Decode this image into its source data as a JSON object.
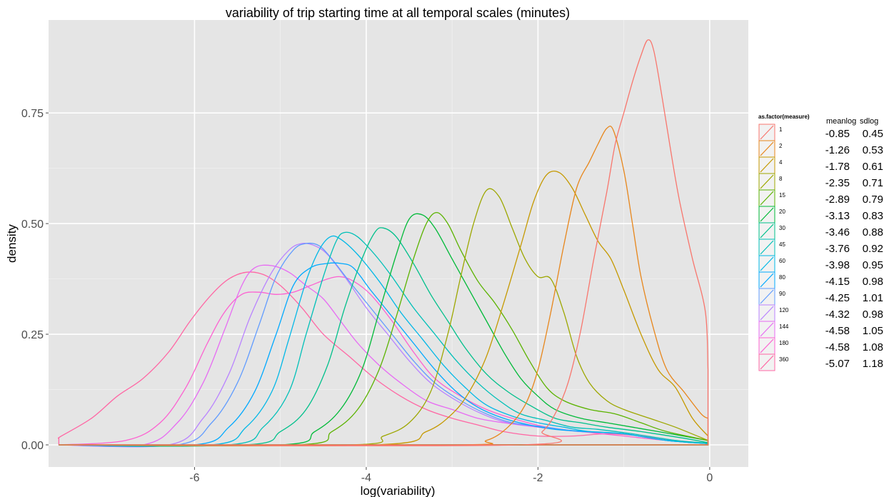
{
  "chart_data": {
    "type": "line",
    "title": "variability of trip starting time at all temporal scales (minutes)",
    "xlabel": "log(variability)",
    "ylabel": "density",
    "xlim": [
      -7.7,
      0.45
    ],
    "ylim": [
      -0.05,
      0.96
    ],
    "x_ticks": [
      -6,
      -4,
      -2,
      0
    ],
    "x_tick_labels": [
      "-6",
      "-4",
      "-2",
      "0"
    ],
    "y_ticks": [
      0,
      0.25,
      0.5,
      0.75
    ],
    "y_tick_labels": [
      "0.00",
      "0.25",
      "0.50",
      "0.75"
    ],
    "grid": true,
    "legend_position": "right",
    "legend_title": "as.factor(measure)",
    "stats_headers": [
      "meanlog",
      "sdlog"
    ],
    "series": [
      {
        "name": "1",
        "color": "#F8766D",
        "meanlog": "-0.85",
        "sdlog": "0.45",
        "x": [
          -7.58,
          -2.2,
          -1.95,
          -1.8,
          -1.65,
          -1.5,
          -1.35,
          -1.2,
          -1.1,
          -1.0,
          -0.9,
          -0.8,
          -0.72,
          -0.65,
          -0.55,
          -0.45,
          -0.35,
          -0.2,
          -0.05,
          -0.02
        ],
        "y": [
          0,
          0,
          0.03,
          0.07,
          0.14,
          0.26,
          0.42,
          0.57,
          0.68,
          0.75,
          0.82,
          0.88,
          0.915,
          0.89,
          0.78,
          0.66,
          0.55,
          0.42,
          0.3,
          0.17
        ]
      },
      {
        "name": "2",
        "color": "#E7861B",
        "meanlog": "-1.26",
        "sdlog": "0.53",
        "x": [
          -7.58,
          -3.0,
          -2.6,
          -2.35,
          -2.15,
          -2.0,
          -1.85,
          -1.7,
          -1.55,
          -1.4,
          -1.3,
          -1.2,
          -1.12,
          -1.0,
          -0.9,
          -0.8,
          -0.65,
          -0.5,
          -0.3,
          -0.1,
          -0.02
        ],
        "y": [
          0,
          0,
          0.01,
          0.04,
          0.09,
          0.17,
          0.3,
          0.45,
          0.58,
          0.64,
          0.68,
          0.715,
          0.71,
          0.62,
          0.5,
          0.38,
          0.26,
          0.17,
          0.12,
          0.07,
          0.06
        ]
      },
      {
        "name": "4",
        "color": "#C59900",
        "meanlog": "-1.78",
        "sdlog": "0.61",
        "x": [
          -7.58,
          -3.9,
          -3.3,
          -3.0,
          -2.8,
          -2.6,
          -2.4,
          -2.2,
          -2.05,
          -1.9,
          -1.75,
          -1.6,
          -1.45,
          -1.3,
          -1.15,
          -1.0,
          -0.8,
          -0.6,
          -0.4,
          -0.2,
          -0.02
        ],
        "y": [
          0,
          0,
          0.03,
          0.07,
          0.12,
          0.2,
          0.32,
          0.45,
          0.55,
          0.61,
          0.615,
          0.58,
          0.52,
          0.46,
          0.42,
          0.35,
          0.25,
          0.17,
          0.13,
          0.06,
          0.02
        ]
      },
      {
        "name": "8",
        "color": "#9DA700",
        "meanlog": "-2.35",
        "sdlog": "0.71",
        "x": [
          -7.58,
          -4.2,
          -3.8,
          -3.5,
          -3.25,
          -3.05,
          -2.9,
          -2.75,
          -2.6,
          -2.45,
          -2.3,
          -2.15,
          -2.0,
          -1.85,
          -1.7,
          -1.55,
          -1.4,
          -1.2,
          -1.0,
          -0.7,
          -0.4,
          -0.02
        ],
        "y": [
          0,
          0,
          0.02,
          0.05,
          0.12,
          0.25,
          0.38,
          0.5,
          0.575,
          0.56,
          0.49,
          0.42,
          0.38,
          0.375,
          0.3,
          0.2,
          0.14,
          0.1,
          0.08,
          0.06,
          0.04,
          0.01
        ]
      },
      {
        "name": "15",
        "color": "#5BB300",
        "meanlog": "-2.89",
        "sdlog": "0.79",
        "x": [
          -7.58,
          -4.8,
          -4.4,
          -4.1,
          -3.85,
          -3.65,
          -3.45,
          -3.3,
          -3.18,
          -3.05,
          -2.9,
          -2.7,
          -2.5,
          -2.3,
          -2.1,
          -1.9,
          -1.7,
          -1.4,
          -1.1,
          -0.8,
          -0.5,
          -0.02
        ],
        "y": [
          0,
          0,
          0.03,
          0.08,
          0.17,
          0.29,
          0.42,
          0.5,
          0.525,
          0.5,
          0.44,
          0.37,
          0.32,
          0.26,
          0.19,
          0.13,
          0.1,
          0.08,
          0.07,
          0.05,
          0.03,
          0.01
        ]
      },
      {
        "name": "20",
        "color": "#00BA38",
        "meanlog": "-3.13",
        "sdlog": "0.83",
        "x": [
          -7.58,
          -5.0,
          -4.6,
          -4.3,
          -4.05,
          -3.85,
          -3.65,
          -3.5,
          -3.35,
          -3.2,
          -3.0,
          -2.8,
          -2.6,
          -2.4,
          -2.2,
          -2.0,
          -1.8,
          -1.5,
          -1.2,
          -0.9,
          -0.6,
          -0.02
        ],
        "y": [
          0,
          0,
          0.03,
          0.08,
          0.17,
          0.3,
          0.43,
          0.51,
          0.52,
          0.49,
          0.42,
          0.35,
          0.28,
          0.21,
          0.15,
          0.11,
          0.08,
          0.06,
          0.05,
          0.04,
          0.03,
          0.01
        ]
      },
      {
        "name": "30",
        "color": "#00C08B",
        "meanlog": "-3.46",
        "sdlog": "0.88",
        "x": [
          -7.58,
          -5.4,
          -5.0,
          -4.7,
          -4.45,
          -4.25,
          -4.05,
          -3.9,
          -3.8,
          -3.65,
          -3.45,
          -3.25,
          -3.05,
          -2.85,
          -2.6,
          -2.35,
          -2.1,
          -1.8,
          -1.5,
          -1.2,
          -0.8,
          -0.3,
          -0.02
        ],
        "y": [
          0,
          0,
          0.03,
          0.08,
          0.18,
          0.31,
          0.42,
          0.48,
          0.49,
          0.47,
          0.41,
          0.34,
          0.28,
          0.22,
          0.16,
          0.12,
          0.09,
          0.06,
          0.05,
          0.04,
          0.03,
          0.015,
          0.005
        ]
      },
      {
        "name": "45",
        "color": "#00C0B8",
        "meanlog": "-3.76",
        "sdlog": "0.92",
        "x": [
          -7.58,
          -5.6,
          -5.2,
          -4.9,
          -4.7,
          -4.5,
          -4.35,
          -4.25,
          -4.1,
          -3.9,
          -3.7,
          -3.45,
          -3.2,
          -2.95,
          -2.7,
          -2.45,
          -2.2,
          -1.9,
          -1.6,
          -1.3,
          -0.9,
          -0.4,
          -0.02
        ],
        "y": [
          0,
          0,
          0.04,
          0.12,
          0.25,
          0.38,
          0.46,
          0.48,
          0.47,
          0.43,
          0.38,
          0.31,
          0.25,
          0.19,
          0.14,
          0.1,
          0.07,
          0.055,
          0.04,
          0.035,
          0.025,
          0.01,
          0.004
        ]
      },
      {
        "name": "60",
        "color": "#00B8E7",
        "meanlog": "-3.98",
        "sdlog": "0.95",
        "x": [
          -7.58,
          -5.8,
          -5.4,
          -5.1,
          -4.9,
          -4.7,
          -4.55,
          -4.42,
          -4.3,
          -4.1,
          -3.85,
          -3.6,
          -3.35,
          -3.1,
          -2.85,
          -2.6,
          -2.3,
          -2.0,
          -1.7,
          -1.4,
          -1.0,
          -0.5,
          -0.02
        ],
        "y": [
          0,
          0,
          0.04,
          0.12,
          0.24,
          0.37,
          0.44,
          0.47,
          0.465,
          0.43,
          0.37,
          0.3,
          0.24,
          0.18,
          0.13,
          0.09,
          0.065,
          0.05,
          0.04,
          0.03,
          0.025,
          0.01,
          0.003
        ]
      },
      {
        "name": "80",
        "color": "#00A9FF",
        "meanlog": "-4.15",
        "sdlog": "0.98",
        "x": [
          -7.58,
          -6.0,
          -5.6,
          -5.3,
          -5.05,
          -4.85,
          -4.65,
          -4.45,
          -4.3,
          -4.15,
          -3.95,
          -3.7,
          -3.45,
          -3.2,
          -2.95,
          -2.7,
          -2.4,
          -2.1,
          -1.8,
          -1.4,
          -1.0,
          -0.5,
          -0.02
        ],
        "y": [
          0,
          0,
          0.04,
          0.12,
          0.25,
          0.36,
          0.4,
          0.41,
          0.41,
          0.4,
          0.35,
          0.29,
          0.23,
          0.17,
          0.12,
          0.085,
          0.06,
          0.045,
          0.035,
          0.03,
          0.025,
          0.01,
          0.003
        ]
      },
      {
        "name": "90",
        "color": "#619CFF",
        "meanlog": "-4.25",
        "sdlog": "1.01",
        "x": [
          -7.58,
          -6.2,
          -5.8,
          -5.5,
          -5.25,
          -5.05,
          -4.85,
          -4.7,
          -4.55,
          -4.4,
          -4.2,
          -3.95,
          -3.7,
          -3.45,
          -3.2,
          -2.9,
          -2.6,
          -2.3,
          -1.9,
          -1.5,
          -1.0,
          -0.5,
          -0.02
        ],
        "y": [
          0,
          0,
          0.05,
          0.14,
          0.27,
          0.38,
          0.44,
          0.455,
          0.45,
          0.42,
          0.37,
          0.31,
          0.25,
          0.19,
          0.14,
          0.1,
          0.07,
          0.05,
          0.04,
          0.03,
          0.025,
          0.01,
          0.003
        ]
      },
      {
        "name": "120",
        "color": "#B983FF",
        "meanlog": "-4.32",
        "sdlog": "0.98",
        "x": [
          -7.58,
          -6.3,
          -5.9,
          -5.6,
          -5.35,
          -5.1,
          -4.9,
          -4.75,
          -4.6,
          -4.45,
          -4.25,
          -4.0,
          -3.75,
          -3.5,
          -3.25,
          -2.95,
          -2.65,
          -2.35,
          -1.95,
          -1.5,
          -1.0,
          -0.5,
          -0.02
        ],
        "y": [
          0,
          0,
          0.06,
          0.16,
          0.29,
          0.39,
          0.44,
          0.455,
          0.45,
          0.43,
          0.38,
          0.31,
          0.25,
          0.19,
          0.14,
          0.1,
          0.07,
          0.05,
          0.04,
          0.03,
          0.025,
          0.01,
          0.003
        ]
      },
      {
        "name": "144",
        "color": "#E76BF3",
        "meanlog": "-4.58",
        "sdlog": "1.05",
        "x": [
          -7.58,
          -6.6,
          -6.2,
          -5.9,
          -5.65,
          -5.45,
          -5.3,
          -5.1,
          -4.9,
          -4.7,
          -4.5,
          -4.3,
          -4.1,
          -3.85,
          -3.6,
          -3.3,
          -3.0,
          -2.7,
          -2.4,
          -2.0,
          -1.5,
          -1.0,
          -0.5,
          -0.02
        ],
        "y": [
          0,
          0,
          0.05,
          0.14,
          0.26,
          0.36,
          0.4,
          0.405,
          0.39,
          0.36,
          0.33,
          0.28,
          0.23,
          0.18,
          0.14,
          0.1,
          0.08,
          0.06,
          0.05,
          0.04,
          0.03,
          0.025,
          0.01,
          0.003
        ]
      },
      {
        "name": "180",
        "color": "#FD61D1",
        "meanlog": "-4.58",
        "sdlog": "1.08",
        "x": [
          -7.58,
          -6.8,
          -6.4,
          -6.1,
          -5.85,
          -5.65,
          -5.45,
          -5.25,
          -5.05,
          -4.85,
          -4.65,
          -4.45,
          -4.3,
          -4.15,
          -3.95,
          -3.7,
          -3.45,
          -3.2,
          -2.9,
          -2.6,
          -2.3,
          -1.9,
          -1.5,
          -1.0,
          -0.5,
          -0.02
        ],
        "y": [
          0,
          0.01,
          0.05,
          0.13,
          0.23,
          0.3,
          0.34,
          0.345,
          0.34,
          0.345,
          0.36,
          0.375,
          0.38,
          0.37,
          0.34,
          0.28,
          0.21,
          0.15,
          0.11,
          0.08,
          0.06,
          0.04,
          0.03,
          0.02,
          0.01,
          0.003
        ]
      },
      {
        "name": "360",
        "color": "#FF67A4",
        "meanlog": "-5.07",
        "sdlog": "1.18",
        "x": [
          -7.58,
          -7.55,
          -7.2,
          -6.9,
          -6.6,
          -6.3,
          -6.05,
          -5.8,
          -5.6,
          -5.4,
          -5.2,
          -5.0,
          -4.75,
          -4.5,
          -4.2,
          -3.9,
          -3.6,
          -3.3,
          -3.0,
          -2.7,
          -2.4,
          -2.0,
          -1.6,
          -1.2,
          -0.8,
          -0.4,
          -0.02
        ],
        "y": [
          0.015,
          0.02,
          0.06,
          0.11,
          0.15,
          0.21,
          0.28,
          0.34,
          0.375,
          0.39,
          0.385,
          0.36,
          0.31,
          0.25,
          0.2,
          0.15,
          0.11,
          0.08,
          0.06,
          0.045,
          0.03,
          0.02,
          0.02,
          0.025,
          0.02,
          0.01,
          0.003
        ]
      }
    ]
  }
}
